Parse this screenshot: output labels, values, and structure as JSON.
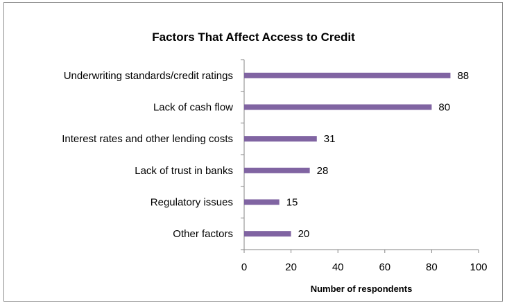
{
  "chart_data": {
    "type": "bar",
    "orientation": "horizontal",
    "title": "Factors That Affect Access to Credit",
    "xlabel": "Number of respondents",
    "ylabel": "",
    "categories": [
      "Underwriting standards/credit ratings",
      "Lack of cash flow",
      "Interest rates and other lending costs",
      "Lack of trust in banks",
      "Regulatory issues",
      "Other factors"
    ],
    "values": [
      88,
      80,
      31,
      28,
      15,
      20
    ],
    "xlim": [
      0,
      100
    ],
    "ticks": [
      0,
      20,
      40,
      60,
      80,
      100
    ],
    "grid": false,
    "legend": "none",
    "bar_color": "#8064a2"
  }
}
